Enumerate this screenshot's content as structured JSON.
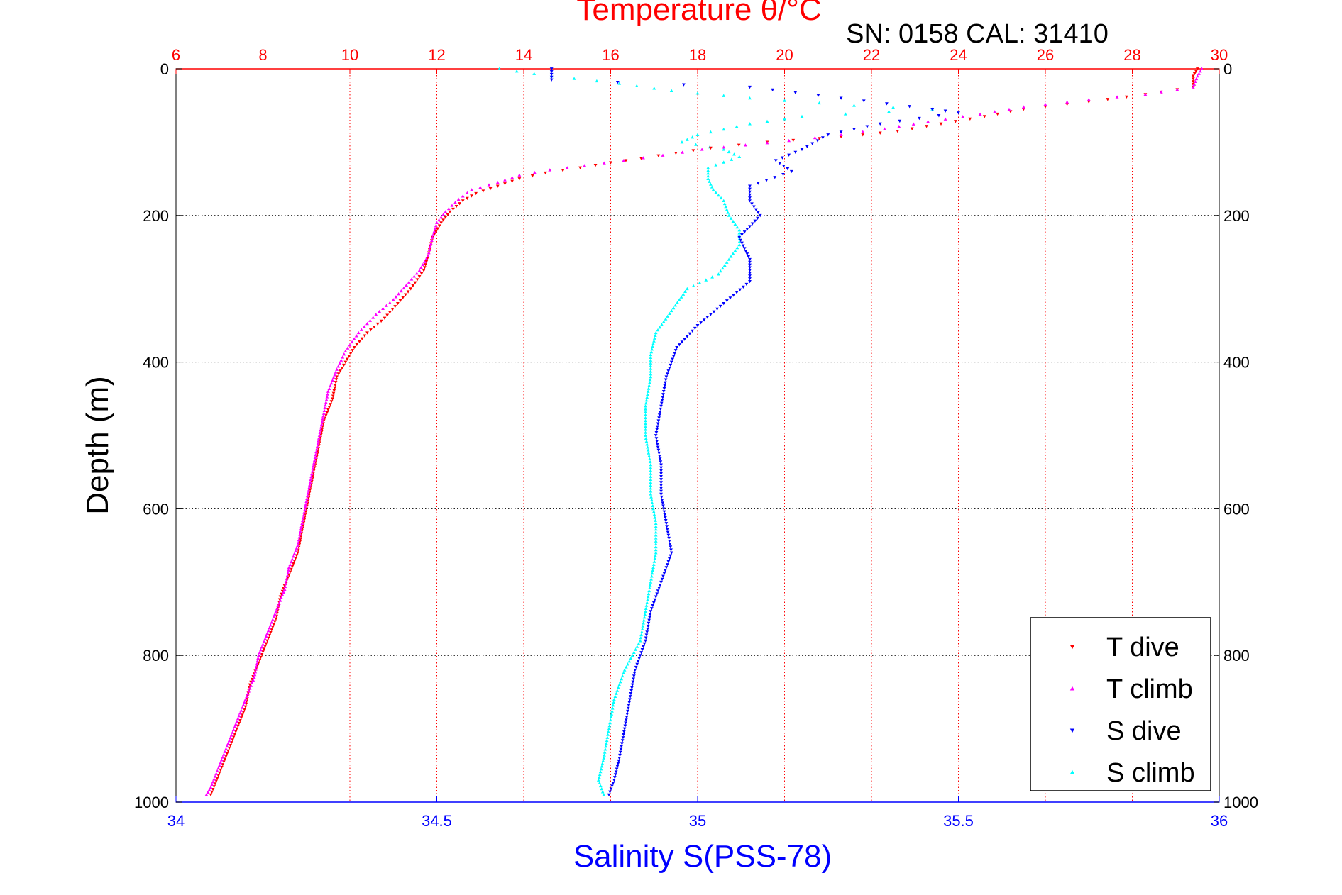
{
  "chart_data": {
    "type": "scatter",
    "title": "Temperature θ/°C",
    "subtitle": "SN: 0158  CAL: 31410",
    "xlabel": "Salinity S(PSS-78)",
    "ylabel": "Depth (m)",
    "top_axis": {
      "label": "Temperature θ/°C",
      "range": [
        6,
        30
      ],
      "ticks": [
        "6",
        "8",
        "10",
        "12",
        "14",
        "16",
        "18",
        "20",
        "22",
        "24",
        "26",
        "28",
        "30"
      ]
    },
    "bottom_axis": {
      "label": "Salinity S(PSS-78)",
      "range": [
        34,
        36
      ],
      "ticks": [
        "34",
        "34.5",
        "35",
        "35.5",
        "36"
      ]
    },
    "y_axis": {
      "range": [
        0,
        1000
      ],
      "reversed": true,
      "ticks": [
        "0",
        "200",
        "400",
        "600",
        "800",
        "1000"
      ]
    },
    "grid": true,
    "legend_position": "bottom-right",
    "colors": {
      "T dive": "#ff0000",
      "T climb": "#ff00ff",
      "S dive": "#0000ff",
      "S climb": "#00ffff"
    },
    "series": [
      {
        "name": "T dive",
        "axis": "temperature",
        "marker": "triangle-down",
        "points": [
          [
            29.5,
            0
          ],
          [
            29.4,
            10
          ],
          [
            29.4,
            25
          ],
          [
            28.3,
            35
          ],
          [
            27.0,
            45
          ],
          [
            25.5,
            55
          ],
          [
            24.6,
            65
          ],
          [
            23.6,
            75
          ],
          [
            22.6,
            85
          ],
          [
            21.8,
            90
          ],
          [
            20.8,
            95
          ],
          [
            19.6,
            100
          ],
          [
            18.3,
            108
          ],
          [
            17.5,
            115
          ],
          [
            16.7,
            122
          ],
          [
            16.0,
            128
          ],
          [
            15.3,
            135
          ],
          [
            14.5,
            142
          ],
          [
            13.9,
            150
          ],
          [
            13.4,
            160
          ],
          [
            12.9,
            170
          ],
          [
            12.6,
            180
          ],
          [
            12.3,
            195
          ],
          [
            12.1,
            210
          ],
          [
            11.9,
            230
          ],
          [
            11.8,
            255
          ],
          [
            11.7,
            275
          ],
          [
            11.4,
            300
          ],
          [
            11.1,
            320
          ],
          [
            10.8,
            340
          ],
          [
            10.4,
            360
          ],
          [
            10.1,
            380
          ],
          [
            9.9,
            400
          ],
          [
            9.7,
            420
          ],
          [
            9.6,
            450
          ],
          [
            9.4,
            480
          ],
          [
            9.3,
            510
          ],
          [
            9.2,
            540
          ],
          [
            9.1,
            570
          ],
          [
            9.0,
            600
          ],
          [
            8.9,
            630
          ],
          [
            8.8,
            660
          ],
          [
            8.6,
            690
          ],
          [
            8.4,
            720
          ],
          [
            8.3,
            750
          ],
          [
            8.1,
            780
          ],
          [
            7.9,
            810
          ],
          [
            7.7,
            840
          ],
          [
            7.6,
            870
          ],
          [
            7.4,
            900
          ],
          [
            7.2,
            930
          ],
          [
            7.0,
            960
          ],
          [
            6.8,
            990
          ]
        ]
      },
      {
        "name": "T climb",
        "axis": "temperature",
        "marker": "triangle-up",
        "points": [
          [
            29.6,
            0
          ],
          [
            29.5,
            10
          ],
          [
            29.4,
            25
          ],
          [
            28.3,
            35
          ],
          [
            27.0,
            42
          ],
          [
            25.5,
            52
          ],
          [
            24.5,
            62
          ],
          [
            23.3,
            72
          ],
          [
            22.3,
            82
          ],
          [
            21.3,
            90
          ],
          [
            20.1,
            98
          ],
          [
            19.1,
            104
          ],
          [
            18.1,
            110
          ],
          [
            17.2,
            118
          ],
          [
            16.3,
            125
          ],
          [
            15.4,
            132
          ],
          [
            14.6,
            138
          ],
          [
            13.9,
            145
          ],
          [
            13.4,
            155
          ],
          [
            12.8,
            165
          ],
          [
            12.5,
            178
          ],
          [
            12.2,
            195
          ],
          [
            12.0,
            210
          ],
          [
            11.9,
            230
          ],
          [
            11.8,
            255
          ],
          [
            11.6,
            275
          ],
          [
            11.3,
            295
          ],
          [
            11.0,
            315
          ],
          [
            10.6,
            335
          ],
          [
            10.2,
            360
          ],
          [
            9.9,
            385
          ],
          [
            9.7,
            410
          ],
          [
            9.5,
            440
          ],
          [
            9.4,
            470
          ],
          [
            9.3,
            500
          ],
          [
            9.2,
            530
          ],
          [
            9.1,
            560
          ],
          [
            9.0,
            590
          ],
          [
            8.9,
            620
          ],
          [
            8.8,
            650
          ],
          [
            8.6,
            680
          ],
          [
            8.5,
            710
          ],
          [
            8.3,
            740
          ],
          [
            8.1,
            770
          ],
          [
            7.9,
            800
          ],
          [
            7.8,
            830
          ],
          [
            7.6,
            860
          ],
          [
            7.4,
            890
          ],
          [
            7.2,
            920
          ],
          [
            7.0,
            950
          ],
          [
            6.8,
            980
          ],
          [
            6.7,
            990
          ]
        ]
      },
      {
        "name": "S dive",
        "axis": "salinity",
        "marker": "triangle-down",
        "points": [
          [
            34.72,
            0
          ],
          [
            34.72,
            15
          ],
          [
            35.1,
            25
          ],
          [
            35.45,
            55
          ],
          [
            35.5,
            60
          ],
          [
            35.35,
            75
          ],
          [
            35.25,
            90
          ],
          [
            35.2,
            110
          ],
          [
            35.15,
            125
          ],
          [
            35.18,
            140
          ],
          [
            35.1,
            160
          ],
          [
            35.1,
            180
          ],
          [
            35.12,
            200
          ],
          [
            35.08,
            230
          ],
          [
            35.1,
            260
          ],
          [
            35.1,
            290
          ],
          [
            35.05,
            320
          ],
          [
            35.0,
            350
          ],
          [
            34.96,
            380
          ],
          [
            34.94,
            420
          ],
          [
            34.93,
            460
          ],
          [
            34.92,
            500
          ],
          [
            34.93,
            540
          ],
          [
            34.93,
            580
          ],
          [
            34.94,
            620
          ],
          [
            34.95,
            660
          ],
          [
            34.93,
            700
          ],
          [
            34.91,
            740
          ],
          [
            34.9,
            780
          ],
          [
            34.88,
            820
          ],
          [
            34.87,
            860
          ],
          [
            34.86,
            900
          ],
          [
            34.85,
            940
          ],
          [
            34.84,
            970
          ],
          [
            34.83,
            990
          ]
        ]
      },
      {
        "name": "S climb",
        "axis": "salinity",
        "marker": "triangle-up",
        "points": [
          [
            34.62,
            0
          ],
          [
            34.72,
            10
          ],
          [
            34.85,
            20
          ],
          [
            34.95,
            30
          ],
          [
            35.1,
            40
          ],
          [
            35.3,
            50
          ],
          [
            35.45,
            55
          ],
          [
            35.2,
            65
          ],
          [
            35.1,
            75
          ],
          [
            35.0,
            90
          ],
          [
            34.97,
            100
          ],
          [
            35.05,
            110
          ],
          [
            35.08,
            120
          ],
          [
            35.02,
            135
          ],
          [
            35.02,
            150
          ],
          [
            35.03,
            165
          ],
          [
            35.05,
            180
          ],
          [
            35.06,
            200
          ],
          [
            35.08,
            220
          ],
          [
            35.08,
            240
          ],
          [
            35.06,
            260
          ],
          [
            35.04,
            280
          ],
          [
            34.98,
            300
          ],
          [
            34.95,
            330
          ],
          [
            34.92,
            360
          ],
          [
            34.91,
            390
          ],
          [
            34.91,
            420
          ],
          [
            34.9,
            460
          ],
          [
            34.9,
            500
          ],
          [
            34.91,
            540
          ],
          [
            34.91,
            580
          ],
          [
            34.92,
            620
          ],
          [
            34.92,
            660
          ],
          [
            34.91,
            700
          ],
          [
            34.9,
            740
          ],
          [
            34.89,
            780
          ],
          [
            34.86,
            820
          ],
          [
            34.84,
            860
          ],
          [
            34.83,
            900
          ],
          [
            34.82,
            940
          ],
          [
            34.81,
            970
          ],
          [
            34.82,
            990
          ]
        ]
      }
    ]
  }
}
